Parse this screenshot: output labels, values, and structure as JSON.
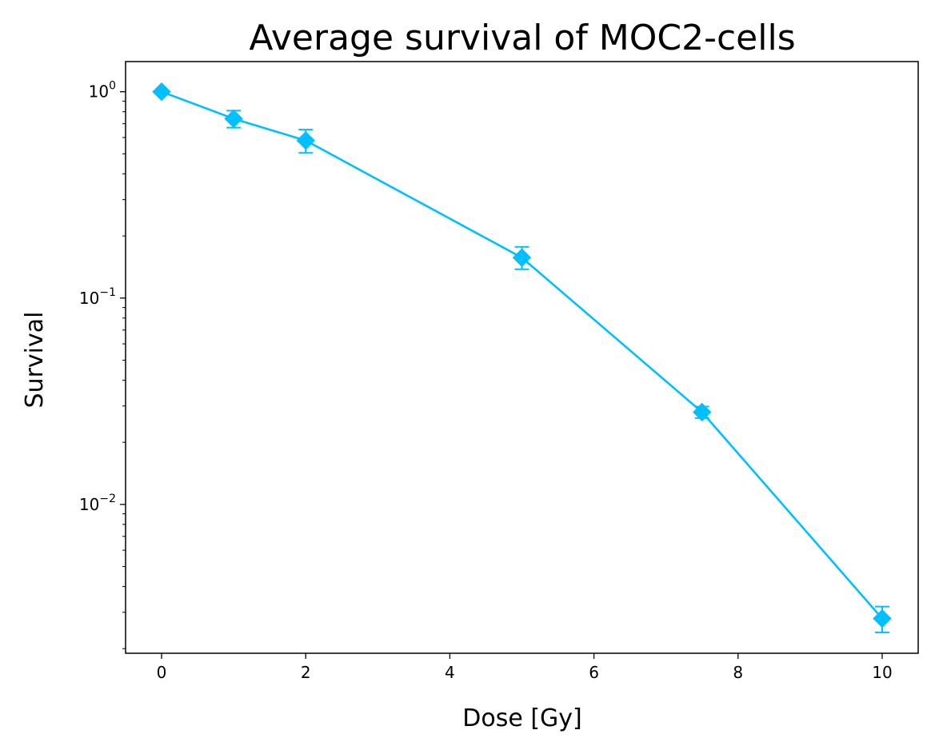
{
  "chart_data": {
    "type": "line",
    "title": "Average survival of MOC2-cells",
    "xlabel": "Dose [Gy]",
    "ylabel": "Survival",
    "xlim": [
      -0.5,
      10.5
    ],
    "ylim": [
      0.0019,
      1.4
    ],
    "yscale": "log",
    "grid": false,
    "x_ticks": [
      0,
      2,
      4,
      6,
      8,
      10
    ],
    "x_tick_labels": [
      "0",
      "2",
      "4",
      "6",
      "8",
      "10"
    ],
    "y_ticks": [
      1,
      0.1,
      0.01
    ],
    "y_tick_labels": [
      {
        "base": "10",
        "exp": "0"
      },
      {
        "base": "10",
        "exp": "−1"
      },
      {
        "base": "10",
        "exp": "−2"
      }
    ],
    "series": [
      {
        "color": "#00bfff",
        "marker": "diamond",
        "x": [
          0,
          1,
          2,
          5,
          7.5,
          10
        ],
        "y": [
          1.0,
          0.74,
          0.58,
          0.157,
          0.028,
          0.0028
        ],
        "yerr_low": [
          1.0,
          0.67,
          0.505,
          0.138,
          0.0262,
          0.0024
        ],
        "yerr_high": [
          1.0,
          0.81,
          0.655,
          0.177,
          0.0298,
          0.0032
        ]
      }
    ]
  }
}
